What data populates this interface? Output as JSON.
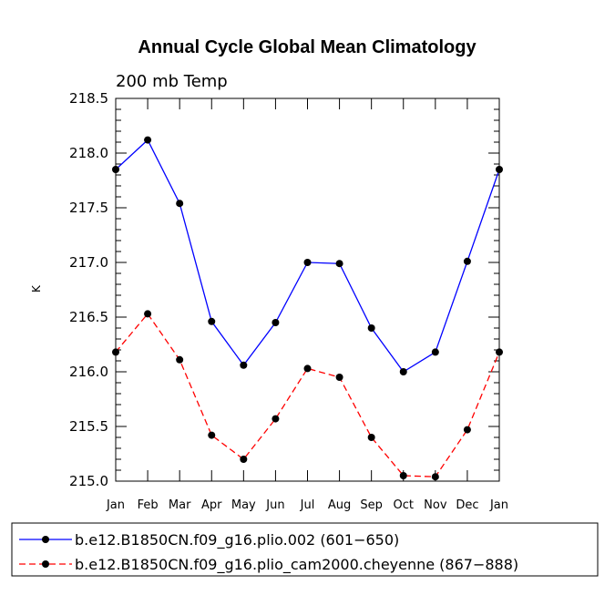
{
  "chart_data": {
    "type": "line",
    "title": "Annual Cycle Global Mean Climatology",
    "subtitle": "200 mb Temp",
    "xlabel": "",
    "ylabel": "K",
    "categories": [
      "Jan",
      "Feb",
      "Mar",
      "Apr",
      "May",
      "Jun",
      "Jul",
      "Aug",
      "Sep",
      "Oct",
      "Nov",
      "Dec",
      "Jan"
    ],
    "ylim": [
      215.0,
      218.5
    ],
    "yticks": [
      "215.0",
      "215.5",
      "216.0",
      "216.5",
      "217.0",
      "217.5",
      "218.0",
      "218.5"
    ],
    "series": [
      {
        "name": "b.e12.B1850CN.f09_g16.plio.002 (601−650)",
        "color": "#0000ff",
        "dash": "solid",
        "values": [
          217.85,
          218.12,
          217.54,
          216.46,
          216.06,
          216.45,
          217.0,
          216.99,
          216.4,
          216.0,
          216.18,
          217.01,
          217.85
        ]
      },
      {
        "name": "b.e12.B1850CN.f09_g16.plio_cam2000.cheyenne (867−888)",
        "color": "#ff0000",
        "dash": "dashed",
        "values": [
          216.18,
          216.53,
          216.11,
          215.42,
          215.2,
          215.57,
          216.03,
          215.95,
          215.4,
          215.05,
          215.04,
          215.47,
          216.18
        ]
      }
    ],
    "legend_position": "bottom"
  }
}
